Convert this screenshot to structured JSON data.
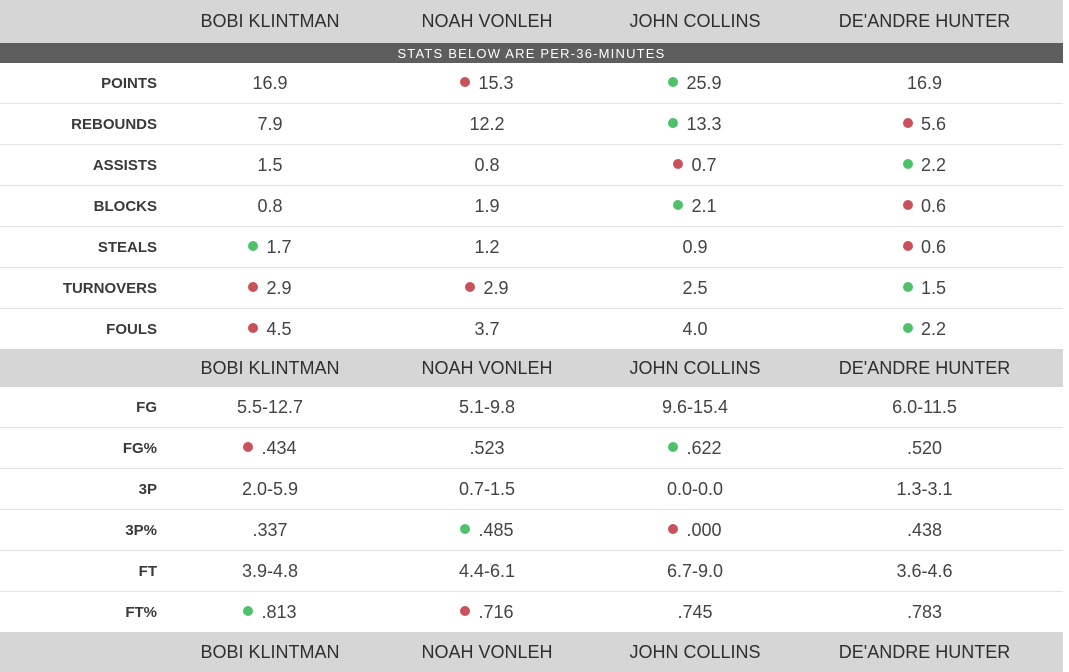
{
  "players": [
    "BOBI KLINTMAN",
    "NOAH VONLEH",
    "JOHN COLLINS",
    "DE'ANDRE HUNTER"
  ],
  "banner": "STATS BELOW ARE PER-36-MINUTES",
  "colors": {
    "red": "#c9515a",
    "green": "#4fc16a",
    "header": "#d6d6d6",
    "banner": "#5e5e5e"
  },
  "per36": [
    {
      "label": "POINTS",
      "cells": [
        {
          "v": "16.9",
          "dot": ""
        },
        {
          "v": "15.3",
          "dot": "red"
        },
        {
          "v": "25.9",
          "dot": "green"
        },
        {
          "v": "16.9",
          "dot": ""
        }
      ]
    },
    {
      "label": "REBOUNDS",
      "cells": [
        {
          "v": "7.9",
          "dot": ""
        },
        {
          "v": "12.2",
          "dot": ""
        },
        {
          "v": "13.3",
          "dot": "green"
        },
        {
          "v": "5.6",
          "dot": "red"
        }
      ]
    },
    {
      "label": "ASSISTS",
      "cells": [
        {
          "v": "1.5",
          "dot": ""
        },
        {
          "v": "0.8",
          "dot": ""
        },
        {
          "v": "0.7",
          "dot": "red"
        },
        {
          "v": "2.2",
          "dot": "green"
        }
      ]
    },
    {
      "label": "BLOCKS",
      "cells": [
        {
          "v": "0.8",
          "dot": ""
        },
        {
          "v": "1.9",
          "dot": ""
        },
        {
          "v": "2.1",
          "dot": "green"
        },
        {
          "v": "0.6",
          "dot": "red"
        }
      ]
    },
    {
      "label": "STEALS",
      "cells": [
        {
          "v": "1.7",
          "dot": "green"
        },
        {
          "v": "1.2",
          "dot": ""
        },
        {
          "v": "0.9",
          "dot": ""
        },
        {
          "v": "0.6",
          "dot": "red"
        }
      ]
    },
    {
      "label": "TURNOVERS",
      "cells": [
        {
          "v": "2.9",
          "dot": "red"
        },
        {
          "v": "2.9",
          "dot": "red"
        },
        {
          "v": "2.5",
          "dot": ""
        },
        {
          "v": "1.5",
          "dot": "green"
        }
      ]
    },
    {
      "label": "FOULS",
      "cells": [
        {
          "v": "4.5",
          "dot": "red"
        },
        {
          "v": "3.7",
          "dot": ""
        },
        {
          "v": "4.0",
          "dot": ""
        },
        {
          "v": "2.2",
          "dot": "green"
        }
      ]
    }
  ],
  "shooting": [
    {
      "label": "FG",
      "cells": [
        {
          "v": "5.5-12.7",
          "dot": ""
        },
        {
          "v": "5.1-9.8",
          "dot": ""
        },
        {
          "v": "9.6-15.4",
          "dot": ""
        },
        {
          "v": "6.0-11.5",
          "dot": ""
        }
      ]
    },
    {
      "label": "FG%",
      "cells": [
        {
          "v": ".434",
          "dot": "red"
        },
        {
          "v": ".523",
          "dot": ""
        },
        {
          "v": ".622",
          "dot": "green"
        },
        {
          "v": ".520",
          "dot": ""
        }
      ]
    },
    {
      "label": "3P",
      "cells": [
        {
          "v": "2.0-5.9",
          "dot": ""
        },
        {
          "v": "0.7-1.5",
          "dot": ""
        },
        {
          "v": "0.0-0.0",
          "dot": ""
        },
        {
          "v": "1.3-3.1",
          "dot": ""
        }
      ]
    },
    {
      "label": "3P%",
      "cells": [
        {
          "v": ".337",
          "dot": ""
        },
        {
          "v": ".485",
          "dot": "green"
        },
        {
          "v": ".000",
          "dot": "red"
        },
        {
          "v": ".438",
          "dot": ""
        }
      ]
    },
    {
      "label": "FT",
      "cells": [
        {
          "v": "3.9-4.8",
          "dot": ""
        },
        {
          "v": "4.4-6.1",
          "dot": ""
        },
        {
          "v": "6.7-9.0",
          "dot": ""
        },
        {
          "v": "3.6-4.6",
          "dot": ""
        }
      ]
    },
    {
      "label": "FT%",
      "cells": [
        {
          "v": ".813",
          "dot": "green"
        },
        {
          "v": ".716",
          "dot": "red"
        },
        {
          "v": ".745",
          "dot": ""
        },
        {
          "v": ".783",
          "dot": ""
        }
      ]
    }
  ]
}
